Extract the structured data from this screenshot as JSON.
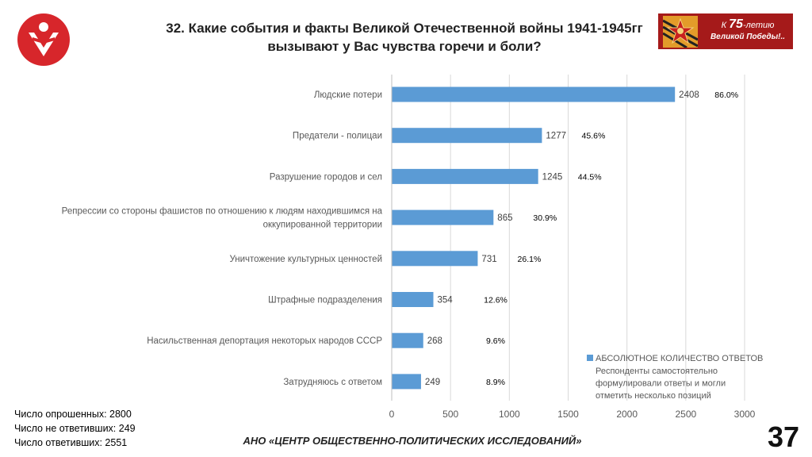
{
  "title_line1": "32. Какие события и факты Великой Отечественной войны 1941-1945гг",
  "title_line2": "вызывают у Вас чувства горечи и боли?",
  "banner": {
    "line1_prefix": "К ",
    "line1_num": "75",
    "line1_suffix": "-летию",
    "line2": "Великой Победы!.."
  },
  "stats": {
    "surveyed": "Число опрошенных: 2800",
    "not_answered": "Число не ответивших: 249",
    "answered": "Число ответивших: 2551"
  },
  "footer": "АНО «ЦЕНТР ОБЩЕСТВЕННО-ПОЛИТИЧЕСКИХ ИССЛЕДОВАНИЙ»",
  "page_number": "37",
  "colors": {
    "bar": "#5b9bd5",
    "grid": "#d9d9d9",
    "logo": "#d7262b",
    "banner": "#a51a1a"
  },
  "chart_data": {
    "type": "bar",
    "orientation": "horizontal",
    "categories": [
      "Людские потери",
      "Предатели - полицаи",
      "Разрушение городов и сел",
      "Репрессии со стороны фашистов по отношению к людям находившимся на оккупированной территории",
      "Уничтожение культурных ценностей",
      "Штрафные подразделения",
      "Насильственная депортация некоторых народов СССР",
      "Затрудняюсь с ответом"
    ],
    "category_lines": [
      [
        "Людские потери"
      ],
      [
        "Предатели - полицаи"
      ],
      [
        "Разрушение городов и сел"
      ],
      [
        "Репрессии со стороны фашистов по отношению к людям находившимся на",
        "оккупированной территории"
      ],
      [
        "Уничтожение культурных ценностей"
      ],
      [
        "Штрафные подразделения"
      ],
      [
        "Насильственная депортация некоторых народов СССР"
      ],
      [
        "Затрудняюсь с ответом"
      ]
    ],
    "series": [
      {
        "name": "АБСОЛЮТНОЕ КОЛИЧЕСТВО ОТВЕТОВ",
        "values": [
          2408,
          1277,
          1245,
          865,
          731,
          354,
          268,
          249
        ]
      }
    ],
    "percent_labels": [
      "86.0%",
      "45.6%",
      "44.5%",
      "30.9%",
      "26.1%",
      "12.6%",
      "9.6%",
      "8.9%"
    ],
    "xlim": [
      0,
      3000
    ],
    "x_ticks": [
      0,
      500,
      1000,
      1500,
      2000,
      2500,
      3000
    ],
    "grid": true,
    "legend_position": "bottom-right",
    "legend_note": [
      "Респонденты самостоятельно",
      "формулировали ответы и могли",
      "отметить несколько позиций"
    ]
  }
}
